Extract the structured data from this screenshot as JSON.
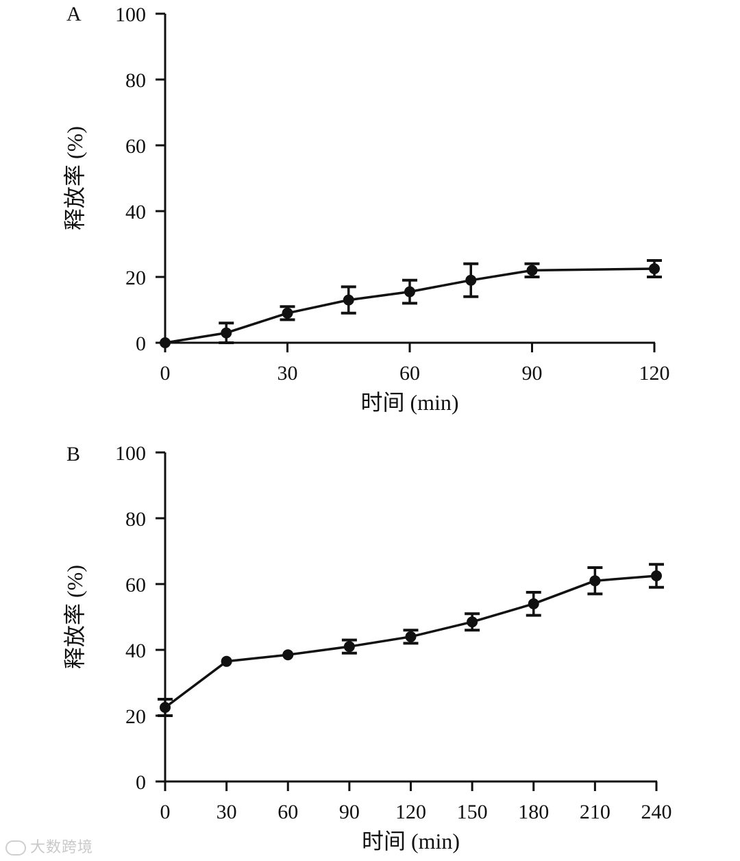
{
  "chart_data": [
    {
      "type": "line",
      "panel_label": "A",
      "xlabel": "时间 (min)",
      "ylabel": "释放率 (%)",
      "xlim": [
        0,
        120
      ],
      "ylim": [
        0,
        100
      ],
      "xticks": [
        0,
        30,
        60,
        90,
        120
      ],
      "yticks": [
        0,
        20,
        40,
        60,
        80,
        100
      ],
      "series": [
        {
          "name": "release",
          "x": [
            0,
            15,
            30,
            45,
            60,
            75,
            90,
            120
          ],
          "y": [
            0,
            3,
            9,
            13,
            15.5,
            19,
            22,
            22.5
          ],
          "error": [
            0,
            3,
            2,
            4,
            3.5,
            5,
            2,
            2.5
          ]
        }
      ]
    },
    {
      "type": "line",
      "panel_label": "B",
      "xlabel": "时间 (min)",
      "ylabel": "释放率 (%)",
      "xlim": [
        0,
        240
      ],
      "ylim": [
        0,
        100
      ],
      "xticks": [
        0,
        30,
        60,
        90,
        120,
        150,
        180,
        210,
        240
      ],
      "yticks": [
        0,
        20,
        40,
        60,
        80,
        100
      ],
      "series": [
        {
          "name": "release",
          "x": [
            0,
            30,
            60,
            90,
            120,
            150,
            180,
            210,
            240
          ],
          "y": [
            22.5,
            36.5,
            38.5,
            41,
            44,
            48.5,
            54,
            61,
            62.5
          ],
          "error": [
            2.5,
            0,
            0,
            2,
            2,
            2.5,
            3.5,
            4,
            3.5
          ]
        }
      ]
    }
  ],
  "watermark": "大数跨境"
}
